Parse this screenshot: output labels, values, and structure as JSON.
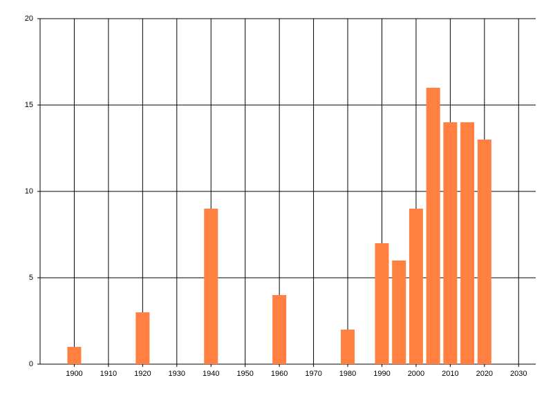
{
  "chart_data": {
    "type": "bar",
    "x": [
      1900,
      1920,
      1940,
      1960,
      1980,
      1990,
      1995,
      2000,
      2005,
      2010,
      2015,
      2020
    ],
    "values": [
      1,
      3,
      9,
      4,
      2,
      7,
      6,
      9,
      16,
      14,
      14,
      13
    ],
    "color": "#ff8040",
    "xlim": [
      1890,
      2035
    ],
    "xticks": [
      1900,
      1910,
      1920,
      1930,
      1940,
      1950,
      1960,
      1970,
      1980,
      1990,
      2000,
      2010,
      2020,
      2030
    ],
    "ylim": [
      0,
      20
    ],
    "yticks": [
      0,
      5,
      10,
      15,
      20
    ],
    "grid": true
  }
}
